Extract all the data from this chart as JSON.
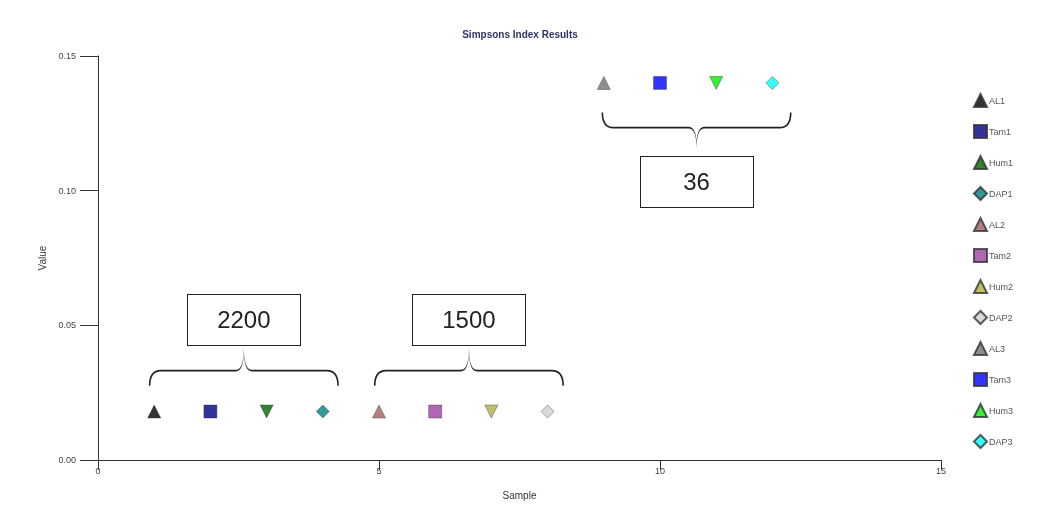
{
  "chart_data": {
    "type": "scatter",
    "title": "Simpsons Index Results",
    "xlabel": "Sample",
    "ylabel": "Value",
    "xlim": [
      0,
      15
    ],
    "xticks": [
      0,
      5,
      10,
      15
    ],
    "ylim": [
      0,
      0.15
    ],
    "yticks": [
      {
        "value": 0,
        "label": "0.00"
      },
      {
        "value": 0.05,
        "label": "0.05"
      },
      {
        "value": 0.1,
        "label": "0.10"
      },
      {
        "value": 0.15,
        "label": "0.15"
      }
    ],
    "grid": false,
    "legend": "right",
    "series": [
      {
        "name": "AL1",
        "color": "#000000",
        "marker": "triangle",
        "x": [
          1
        ],
        "values": [
          0.018
        ]
      },
      {
        "name": "Tam1",
        "color": "#000080",
        "marker": "square",
        "x": [
          2
        ],
        "values": [
          0.018
        ]
      },
      {
        "name": "Hum1",
        "color": "#006400",
        "marker": "triangle-down",
        "x": [
          3
        ],
        "values": [
          0.018
        ]
      },
      {
        "name": "DAP1",
        "color": "#008080",
        "marker": "diamond",
        "x": [
          4
        ],
        "values": [
          0.018
        ]
      },
      {
        "name": "AL2",
        "color": "#a06060",
        "marker": "triangle",
        "x": [
          5
        ],
        "values": [
          0.018
        ]
      },
      {
        "name": "Tam2",
        "color": "#a040a0",
        "marker": "square",
        "x": [
          6
        ],
        "values": [
          0.018
        ]
      },
      {
        "name": "Hum2",
        "color": "#b0b040",
        "marker": "triangle-down",
        "x": [
          7
        ],
        "values": [
          0.018
        ]
      },
      {
        "name": "DAP2",
        "color": "#d0d0d0",
        "marker": "diamond",
        "x": [
          8
        ],
        "values": [
          0.018
        ]
      },
      {
        "name": "AL3",
        "color": "#707070",
        "marker": "triangle",
        "x": [
          9
        ],
        "values": [
          0.14
        ]
      },
      {
        "name": "Tam3",
        "color": "#0000ff",
        "marker": "square",
        "x": [
          10
        ],
        "values": [
          0.14
        ]
      },
      {
        "name": "Hum3",
        "color": "#00ee00",
        "marker": "triangle-down",
        "x": [
          11
        ],
        "values": [
          0.14
        ]
      },
      {
        "name": "DAP3",
        "color": "#00ffff",
        "marker": "diamond",
        "x": [
          12
        ],
        "values": [
          0.14
        ]
      }
    ],
    "annotations": [
      "2200",
      "1500",
      "36"
    ]
  }
}
